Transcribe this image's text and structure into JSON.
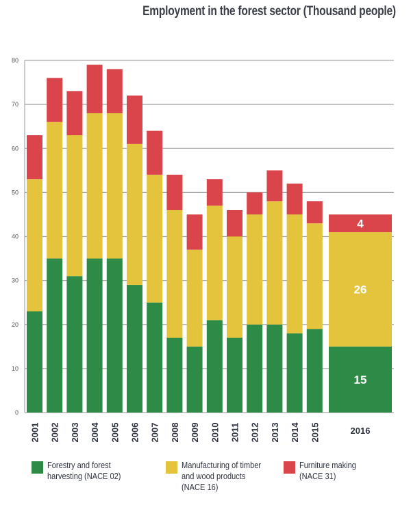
{
  "chart_data": {
    "type": "bar",
    "stacked": true,
    "title": "Employment in the forest sector (Thousand people)",
    "xlabel": "",
    "ylabel": "",
    "ylim": [
      0,
      80
    ],
    "yticks": [
      0,
      10,
      20,
      30,
      40,
      50,
      60,
      70,
      80
    ],
    "grid": true,
    "legend_position": "bottom",
    "categories": [
      "2001",
      "2002",
      "2003",
      "2004",
      "2005",
      "2006",
      "2007",
      "2008",
      "2009",
      "2010",
      "2011",
      "2012",
      "2013",
      "2014",
      "2015",
      "2016"
    ],
    "series": [
      {
        "name": "Forestry and  forest harvesting (NACE 02)",
        "color": "#2e8b47",
        "values": [
          23,
          35,
          31,
          35,
          35,
          29,
          25,
          17,
          15,
          21,
          17,
          20,
          20,
          18,
          19,
          15
        ]
      },
      {
        "name": "Manufacturing of timber and wood products (NACE 16)",
        "color": "#e3c43c",
        "values": [
          30,
          31,
          32,
          33,
          33,
          32,
          29,
          29,
          22,
          26,
          23,
          25,
          28,
          27,
          24,
          26
        ]
      },
      {
        "name": "Furniture making (NACE 31)",
        "color": "#d9454a",
        "values": [
          10,
          10,
          10,
          11,
          10,
          11,
          10,
          8,
          8,
          6,
          6,
          5,
          7,
          7,
          5,
          4
        ]
      }
    ],
    "data_labels": {
      "2016": [
        "15",
        "26",
        "4"
      ]
    },
    "highlighted_category": "2016"
  },
  "legend": [
    {
      "label": "Forestry and  forest\nharvesting (NACE 02)",
      "color": "#2e8b47"
    },
    {
      "label": "Manufacturing of timber\nand wood products\n(NACE 16)",
      "color": "#e3c43c"
    },
    {
      "label": "Furniture making\n(NACE 31)",
      "color": "#d9454a"
    }
  ]
}
